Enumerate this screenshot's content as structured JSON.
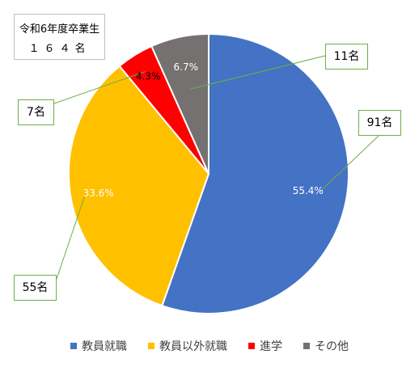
{
  "chart_data": {
    "type": "pie",
    "title_lines": [
      "令和6年度卒業生",
      "１６４名"
    ],
    "categories": [
      "教員就職",
      "教員以外就職",
      "進学",
      "その他"
    ],
    "values": [
      55.4,
      33.6,
      4.3,
      6.7
    ],
    "value_labels": [
      "55.4%",
      "33.6%",
      "4.3%",
      "6.7%"
    ],
    "counts": [
      "91名",
      "55名",
      "7名",
      "11名"
    ],
    "colors": [
      "#4472c4",
      "#ffc000",
      "#ff0000",
      "#767171"
    ],
    "legend_placement": "bottom"
  }
}
